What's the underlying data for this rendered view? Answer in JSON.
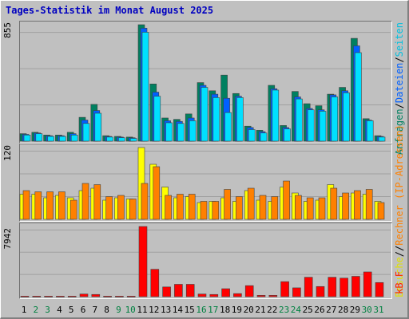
{
  "title": "Tages-Statistik im Monat August 2025",
  "legend": {
    "anfragen": "Anfragen",
    "slash1": "/",
    "dateien": "Dateien",
    "slash2": "/",
    "seiten": "Seiten",
    "slash3": "/",
    "besuche": "Besuche",
    "slash4": "/",
    "rechner": "Rechner (IP-Adressen)",
    "kb": "kB F"
  },
  "colors": {
    "anfragen": "#008060",
    "dateien": "#0060ff",
    "seiten": "#00e0ff",
    "besuche": "#ffff00",
    "rechner": "#ff8000",
    "kb": "#ff0000",
    "weekend": "#008040",
    "weekday": "#000000"
  },
  "chart_data": [
    {
      "type": "bar",
      "ymax_label": "855",
      "ylim": [
        0,
        855
      ],
      "categories": [
        "1",
        "2",
        "3",
        "4",
        "5",
        "6",
        "7",
        "8",
        "9",
        "10",
        "11",
        "12",
        "13",
        "14",
        "15",
        "16",
        "17",
        "18",
        "19",
        "20",
        "21",
        "22",
        "23",
        "24",
        "25",
        "26",
        "27",
        "28",
        "29",
        "30",
        "31"
      ],
      "series": [
        {
          "name": "Anfragen",
          "values": [
            55,
            65,
            45,
            45,
            65,
            175,
            270,
            40,
            35,
            30,
            855,
            420,
            170,
            160,
            200,
            430,
            370,
            485,
            350,
            110,
            80,
            410,
            115,
            365,
            275,
            260,
            345,
            395,
            755,
            165,
            40
          ]
        },
        {
          "name": "Dateien",
          "values": [
            50,
            60,
            40,
            40,
            55,
            155,
            225,
            35,
            30,
            25,
            830,
            360,
            150,
            145,
            170,
            410,
            345,
            315,
            330,
            100,
            70,
            385,
            100,
            325,
            240,
            230,
            340,
            370,
            700,
            155,
            35
          ]
        },
        {
          "name": "Seiten",
          "values": [
            45,
            55,
            35,
            35,
            45,
            130,
            205,
            30,
            25,
            20,
            800,
            330,
            135,
            130,
            150,
            395,
            320,
            210,
            320,
            85,
            60,
            375,
            90,
            310,
            230,
            220,
            325,
            355,
            650,
            150,
            30
          ]
        }
      ]
    },
    {
      "type": "bar",
      "ymax_label": "120",
      "ylim": [
        0,
        120
      ],
      "categories": [
        "1",
        "2",
        "3",
        "4",
        "5",
        "6",
        "7",
        "8",
        "9",
        "10",
        "11",
        "12",
        "13",
        "14",
        "15",
        "16",
        "17",
        "18",
        "19",
        "20",
        "21",
        "22",
        "23",
        "24",
        "25",
        "26",
        "27",
        "28",
        "29",
        "30",
        "31"
      ],
      "series": [
        {
          "name": "Besuche",
          "values": [
            42,
            42,
            36,
            40,
            36,
            48,
            52,
            32,
            36,
            34,
            120,
            92,
            54,
            36,
            38,
            28,
            30,
            36,
            30,
            48,
            32,
            30,
            54,
            44,
            30,
            32,
            58,
            38,
            44,
            42,
            30
          ]
        },
        {
          "name": "Rechner (IP-Adressen)",
          "values": [
            48,
            46,
            46,
            46,
            32,
            60,
            58,
            38,
            40,
            34,
            60,
            88,
            40,
            42,
            42,
            30,
            30,
            50,
            38,
            52,
            40,
            38,
            64,
            40,
            36,
            36,
            52,
            44,
            48,
            50,
            28
          ]
        }
      ]
    },
    {
      "type": "bar",
      "ymax_label": "7942",
      "ylim": [
        0,
        7942
      ],
      "categories": [
        "1",
        "2",
        "3",
        "4",
        "5",
        "6",
        "7",
        "8",
        "9",
        "10",
        "11",
        "12",
        "13",
        "14",
        "15",
        "16",
        "17",
        "18",
        "19",
        "20",
        "21",
        "22",
        "23",
        "24",
        "25",
        "26",
        "27",
        "28",
        "29",
        "30",
        "31"
      ],
      "series": [
        {
          "name": "kB F",
          "values": [
            60,
            60,
            60,
            60,
            60,
            300,
            250,
            60,
            60,
            60,
            7942,
            3100,
            1100,
            1400,
            1400,
            300,
            250,
            900,
            350,
            1250,
            150,
            150,
            1700,
            1000,
            2200,
            1150,
            2200,
            2100,
            2300,
            2800,
            1600
          ]
        }
      ]
    }
  ],
  "days": [
    {
      "label": "1",
      "weekend": false
    },
    {
      "label": "2",
      "weekend": true
    },
    {
      "label": "3",
      "weekend": true
    },
    {
      "label": "4",
      "weekend": false
    },
    {
      "label": "5",
      "weekend": false
    },
    {
      "label": "6",
      "weekend": false
    },
    {
      "label": "7",
      "weekend": false
    },
    {
      "label": "8",
      "weekend": false
    },
    {
      "label": "9",
      "weekend": true
    },
    {
      "label": "10",
      "weekend": true
    },
    {
      "label": "11",
      "weekend": false
    },
    {
      "label": "12",
      "weekend": false
    },
    {
      "label": "13",
      "weekend": false
    },
    {
      "label": "14",
      "weekend": false
    },
    {
      "label": "15",
      "weekend": false
    },
    {
      "label": "16",
      "weekend": true
    },
    {
      "label": "17",
      "weekend": true
    },
    {
      "label": "18",
      "weekend": false
    },
    {
      "label": "19",
      "weekend": false
    },
    {
      "label": "20",
      "weekend": false
    },
    {
      "label": "21",
      "weekend": false
    },
    {
      "label": "22",
      "weekend": false
    },
    {
      "label": "23",
      "weekend": true
    },
    {
      "label": "24",
      "weekend": true
    },
    {
      "label": "25",
      "weekend": false
    },
    {
      "label": "26",
      "weekend": false
    },
    {
      "label": "27",
      "weekend": false
    },
    {
      "label": "28",
      "weekend": false
    },
    {
      "label": "29",
      "weekend": false
    },
    {
      "label": "30",
      "weekend": true
    },
    {
      "label": "31",
      "weekend": true
    }
  ]
}
